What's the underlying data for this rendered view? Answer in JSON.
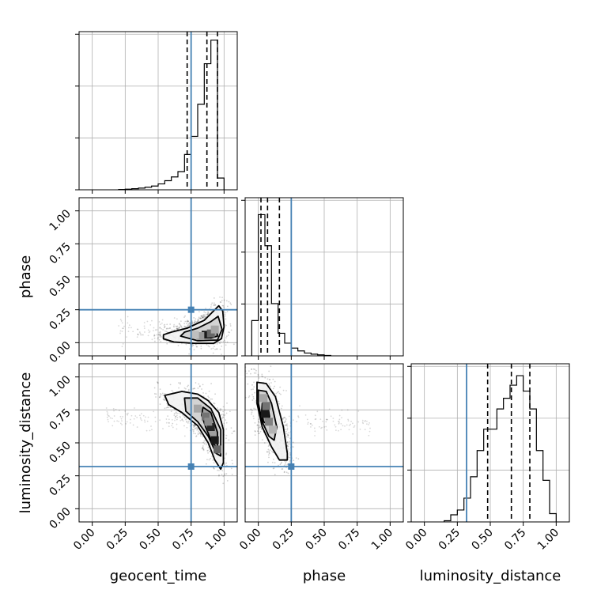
{
  "colors": {
    "truth": "#4682b4",
    "hist": "#000000",
    "grid": "#b0b0b0",
    "samples": "#000000"
  },
  "parameters": [
    "geocent_time",
    "phase",
    "luminosity_distance"
  ],
  "truths": {
    "geocent_time": 0.75,
    "phase": 0.25,
    "luminosity_distance": 0.32
  },
  "tick_labels": [
    "0.00",
    "0.25",
    "0.50",
    "0.75",
    "1.00"
  ],
  "chart_data": {
    "type": "corner",
    "axis_range": [
      -0.1,
      1.1
    ],
    "diagonals": [
      {
        "parameter": "geocent_time",
        "bin_edges": [
          0.2,
          0.25,
          0.3,
          0.35,
          0.4,
          0.45,
          0.5,
          0.55,
          0.6,
          0.65,
          0.7,
          0.75,
          0.8,
          0.85,
          0.9,
          0.95,
          1.0
        ],
        "counts": [
          0.3,
          0.6,
          1.0,
          1.6,
          2.4,
          3.5,
          5.5,
          8.5,
          12,
          17,
          33,
          50,
          80,
          118,
          140,
          11
        ],
        "quantiles": [
          0.72,
          0.87,
          0.95
        ],
        "ymax": 148
      },
      {
        "parameter": "phase",
        "bin_edges": [
          -0.05,
          0.0,
          0.05,
          0.1,
          0.15,
          0.2,
          0.25,
          0.3,
          0.35,
          0.4,
          0.45,
          0.5,
          0.55
        ],
        "counts": [
          0.25,
          1.0,
          0.78,
          0.37,
          0.16,
          0.09,
          0.055,
          0.035,
          0.02,
          0.012,
          0.007,
          0.003
        ],
        "quantiles": [
          0.02,
          0.07,
          0.16
        ],
        "ymax": 1.12
      },
      {
        "parameter": "luminosity_distance",
        "bin_edges": [
          0.15,
          0.2,
          0.25,
          0.3,
          0.35,
          0.4,
          0.45,
          0.5,
          0.55,
          0.6,
          0.65,
          0.7,
          0.75,
          0.8,
          0.85,
          0.9,
          0.95,
          1.0
        ],
        "counts": [
          0.01,
          0.06,
          0.1,
          0.2,
          0.38,
          0.6,
          0.78,
          0.78,
          0.95,
          1.04,
          1.15,
          1.23,
          1.1,
          0.95,
          0.6,
          0.35,
          0.07
        ],
        "quantiles": [
          0.48,
          0.66,
          0.8
        ],
        "ymax": 1.33
      }
    ],
    "pairs": [
      {
        "x": "geocent_time",
        "y": "phase",
        "contours": [
          [
            [
              0.54,
              0.03
            ],
            [
              0.62,
              0.005
            ],
            [
              0.78,
              -0.005
            ],
            [
              0.92,
              -0.005
            ],
            [
              0.98,
              0.03
            ],
            [
              1.0,
              0.12
            ],
            [
              0.99,
              0.24
            ],
            [
              0.96,
              0.28
            ],
            [
              0.92,
              0.24
            ],
            [
              0.85,
              0.17
            ],
            [
              0.72,
              0.11
            ],
            [
              0.6,
              0.08
            ],
            [
              0.54,
              0.06
            ]
          ],
          [
            [
              0.67,
              0.05
            ],
            [
              0.8,
              0.015
            ],
            [
              0.95,
              0.02
            ],
            [
              0.985,
              0.1
            ],
            [
              0.955,
              0.2
            ],
            [
              0.9,
              0.16
            ],
            [
              0.8,
              0.11
            ],
            [
              0.7,
              0.08
            ]
          ],
          [
            [
              0.82,
              0.05
            ],
            [
              0.9,
              0.035
            ],
            [
              0.95,
              0.05
            ],
            [
              0.945,
              0.09
            ],
            [
              0.89,
              0.09
            ],
            [
              0.83,
              0.07
            ]
          ]
        ],
        "density_cells": [
          [
            0.86,
            0.06,
            0.9
          ],
          [
            0.9,
            0.07,
            0.6
          ],
          [
            0.82,
            0.05,
            0.4
          ],
          [
            0.93,
            0.1,
            0.35
          ],
          [
            0.78,
            0.06,
            0.25
          ]
        ],
        "sample_cloud": {
          "x_range": [
            0.2,
            1.0
          ],
          "trend": "phase rises near geocent_time 1.0"
        }
      },
      {
        "x": "geocent_time",
        "y": "luminosity_distance",
        "contours": [
          [
            [
              0.55,
              0.86
            ],
            [
              0.68,
              0.89
            ],
            [
              0.8,
              0.87
            ],
            [
              0.88,
              0.82
            ],
            [
              0.96,
              0.73
            ],
            [
              0.995,
              0.6
            ],
            [
              0.995,
              0.35
            ],
            [
              0.975,
              0.3
            ],
            [
              0.93,
              0.37
            ],
            [
              0.88,
              0.5
            ],
            [
              0.8,
              0.63
            ],
            [
              0.68,
              0.73
            ],
            [
              0.58,
              0.79
            ]
          ],
          [
            [
              0.7,
              0.84
            ],
            [
              0.8,
              0.84
            ],
            [
              0.9,
              0.76
            ],
            [
              0.975,
              0.6
            ],
            [
              0.975,
              0.4
            ],
            [
              0.94,
              0.42
            ],
            [
              0.88,
              0.55
            ],
            [
              0.8,
              0.66
            ],
            [
              0.71,
              0.74
            ]
          ],
          [
            [
              0.84,
              0.77
            ],
            [
              0.9,
              0.73
            ],
            [
              0.95,
              0.58
            ],
            [
              0.95,
              0.46
            ],
            [
              0.91,
              0.5
            ],
            [
              0.86,
              0.62
            ],
            [
              0.83,
              0.71
            ]
          ]
        ],
        "density_cells": [
          [
            0.9,
            0.62,
            0.85
          ],
          [
            0.93,
            0.52,
            0.9
          ],
          [
            0.86,
            0.7,
            0.55
          ],
          [
            0.8,
            0.76,
            0.35
          ],
          [
            0.88,
            0.66,
            0.45
          ],
          [
            0.95,
            0.45,
            0.6
          ]
        ],
        "sample_cloud": {
          "x_range": [
            0.1,
            1.0
          ],
          "trend": "luminosity_distance falls as geocent_time rises"
        }
      },
      {
        "x": "phase",
        "y": "luminosity_distance",
        "contours": [
          [
            [
              -0.01,
              0.96
            ],
            [
              0.06,
              0.95
            ],
            [
              0.13,
              0.85
            ],
            [
              0.19,
              0.62
            ],
            [
              0.22,
              0.42
            ],
            [
              0.22,
              0.37
            ],
            [
              0.16,
              0.37
            ],
            [
              0.1,
              0.47
            ],
            [
              0.03,
              0.62
            ],
            [
              -0.01,
              0.8
            ]
          ],
          [
            [
              0.0,
              0.9
            ],
            [
              0.06,
              0.89
            ],
            [
              0.1,
              0.8
            ],
            [
              0.14,
              0.62
            ],
            [
              0.12,
              0.52
            ],
            [
              0.08,
              0.55
            ],
            [
              0.03,
              0.66
            ],
            [
              0.0,
              0.8
            ]
          ],
          [
            [
              0.03,
              0.8
            ],
            [
              0.07,
              0.8
            ],
            [
              0.085,
              0.7
            ],
            [
              0.07,
              0.64
            ],
            [
              0.04,
              0.66
            ],
            [
              0.025,
              0.73
            ]
          ]
        ],
        "density_cells": [
          [
            0.05,
            0.72,
            0.9
          ],
          [
            0.06,
            0.78,
            0.55
          ],
          [
            0.08,
            0.66,
            0.5
          ],
          [
            0.04,
            0.84,
            0.35
          ],
          [
            0.11,
            0.6,
            0.3
          ]
        ],
        "sample_cloud": {
          "x_range": [
            -0.05,
            0.85
          ],
          "trend": "luminosity_distance falls as phase rises"
        }
      }
    ]
  }
}
